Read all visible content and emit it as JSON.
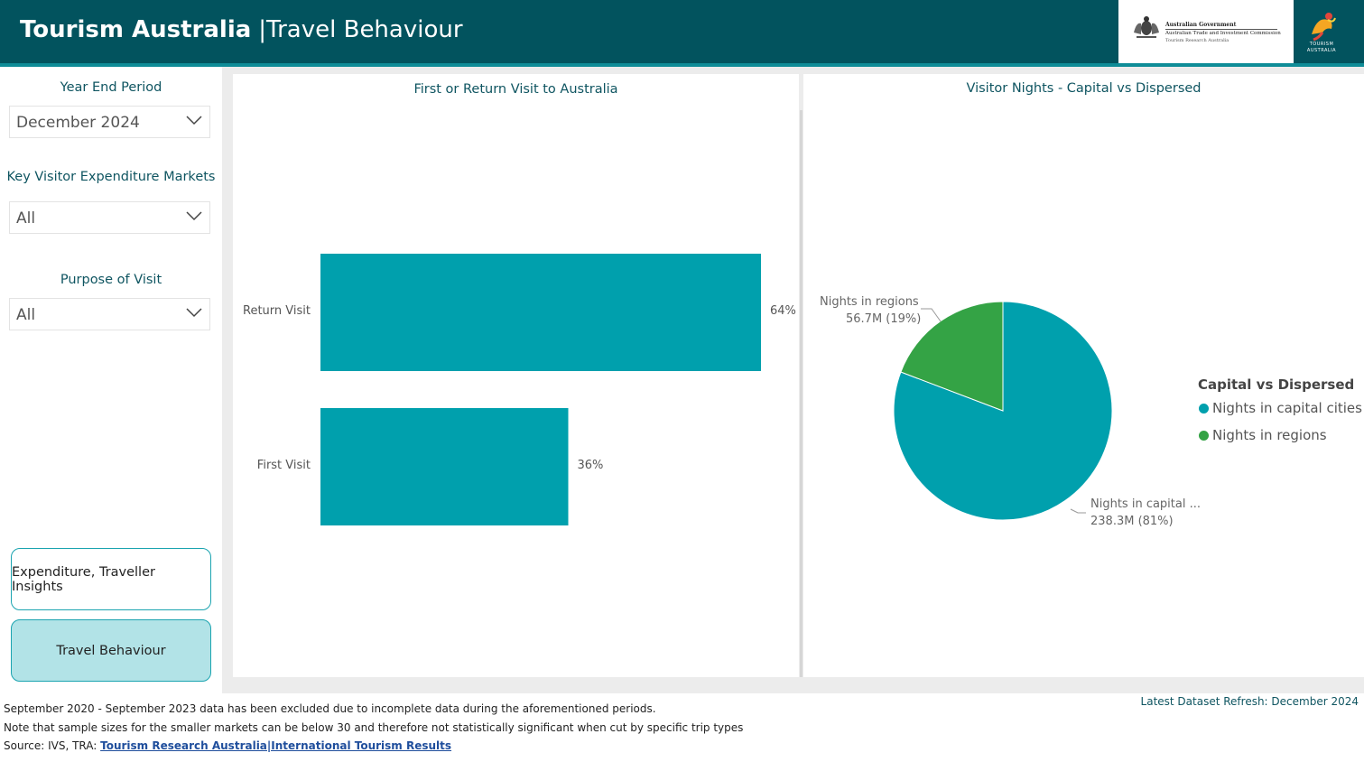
{
  "header": {
    "title_main": "Tourism Australia",
    "title_separator": "|",
    "title_sub": "Travel Behaviour",
    "gov_logo": {
      "line1": "Australian Government",
      "line2": "Australian Trade and Investment Commission",
      "line3": "Tourism Research Australia"
    },
    "ta_logo": {
      "line1": "TOURISM",
      "line2": "AUSTRALIA"
    }
  },
  "filters": {
    "year_end_period": {
      "label": "Year End Period",
      "value": "December 2024"
    },
    "key_markets": {
      "label": "Key Visitor Expenditure Markets",
      "value": "All"
    },
    "purpose": {
      "label": "Purpose of Visit",
      "value": "All"
    }
  },
  "nav": {
    "insights_label": "Expenditure, Traveller Insights",
    "travel_label": "Travel Behaviour"
  },
  "bar_panel": {
    "title": "First or Return Visit to Australia"
  },
  "pie_panel": {
    "title": "Visitor Nights - Capital vs Dispersed",
    "legend_title": "Capital vs Dispersed"
  },
  "chart_data": [
    {
      "type": "bar",
      "orientation": "horizontal",
      "title": "First or Return Visit to Australia",
      "categories": [
        "Return Visit",
        "First Visit"
      ],
      "values": [
        64,
        36
      ],
      "value_labels": [
        "64%",
        "36%"
      ],
      "xlim": [
        0,
        64
      ],
      "color": "#00a0ad",
      "grid": false
    },
    {
      "type": "pie",
      "title": "Visitor Nights - Capital vs Dispersed",
      "slices": [
        {
          "name": "Nights in capital cities",
          "value": 238.3,
          "percent": 81,
          "label_name": "Nights in capital ...",
          "label_value": "238.3M (81%)",
          "color": "#00a0ad"
        },
        {
          "name": "Nights in regions",
          "value": 56.7,
          "percent": 19,
          "label_name": "Nights in regions",
          "label_value": "56.7M (19%)",
          "color": "#34a345"
        }
      ],
      "legend_title": "Capital vs Dispersed",
      "legend_placement": "right"
    }
  ],
  "footer": {
    "note1": "September 2020 - September 2023 data has been excluded due to incomplete data during the aforementioned periods.",
    "note2": "Note that sample sizes for the smaller markets can be below 30 and therefore not statistically significant when cut by specific trip types",
    "source_prefix": "Source: IVS, TRA: ",
    "source_link": " Tourism Research Australia|International Tourism Results ",
    "refresh": "Latest Dataset Refresh: December 2024"
  }
}
